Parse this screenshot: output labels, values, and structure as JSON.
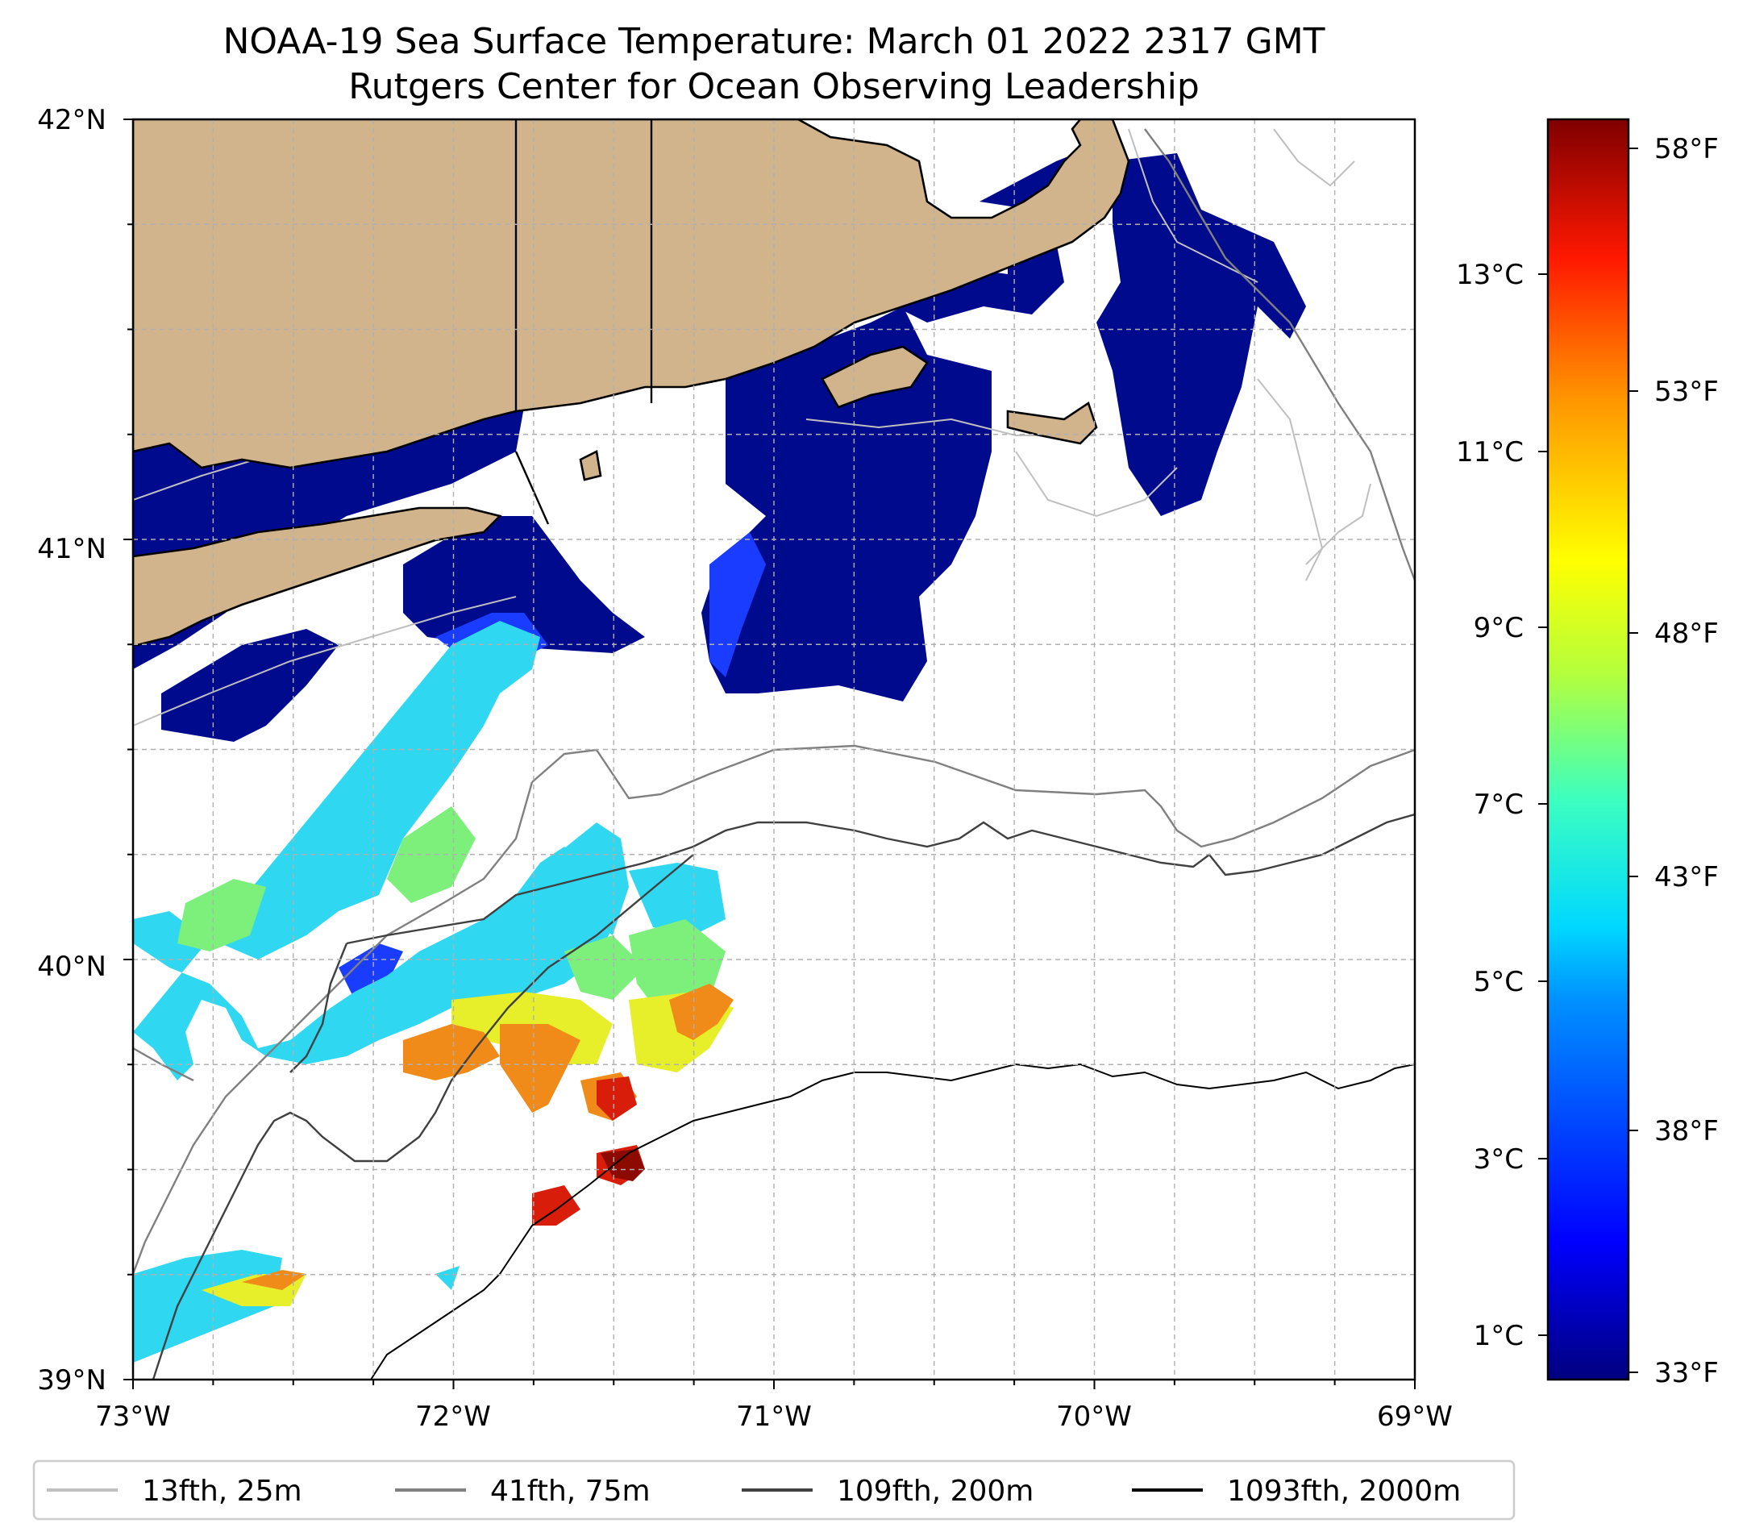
{
  "title": {
    "line1": "NOAA-19 Sea Surface Temperature: March 01 2022 2317 GMT",
    "line2": "Rutgers Center for Ocean Observing Leadership"
  },
  "map": {
    "lon_range": [
      -73,
      -69
    ],
    "lat_range": [
      39,
      42
    ],
    "x_ticks": [
      "73°W",
      "72°W",
      "71°W",
      "70°W",
      "69°W"
    ],
    "y_ticks": [
      "42°N",
      "41°N",
      "40°N",
      "39°N"
    ],
    "gridlines": "dashed",
    "land_color": "#d2b48c",
    "coast_color": "#000000"
  },
  "colorbar": {
    "colormap": "jet",
    "fahrenheit_ticks": [
      "58°F",
      "53°F",
      "48°F",
      "43°F",
      "38°F",
      "33°F"
    ],
    "celsius_ticks": [
      "13°C",
      "11°C",
      "9°C",
      "7°C",
      "5°C",
      "3°C",
      "1°C"
    ]
  },
  "legend": {
    "placement": "bottom-center",
    "items": [
      {
        "label": "13fth, 25m",
        "color": "#bfbfbf"
      },
      {
        "label": "41fth, 75m",
        "color": "#808080"
      },
      {
        "label": "109fth, 200m",
        "color": "#404040"
      },
      {
        "label": "1093fth, 2000m",
        "color": "#000000"
      }
    ]
  },
  "sst_colors": {
    "cold": "#000a8c",
    "cool_blue": "#1a3cff",
    "cyan": "#2fd8f0",
    "green": "#7cf07a",
    "yellow": "#e6ef2a",
    "orange": "#f08a18",
    "red": "#d81e0a",
    "dark_red": "#8c0a00"
  }
}
